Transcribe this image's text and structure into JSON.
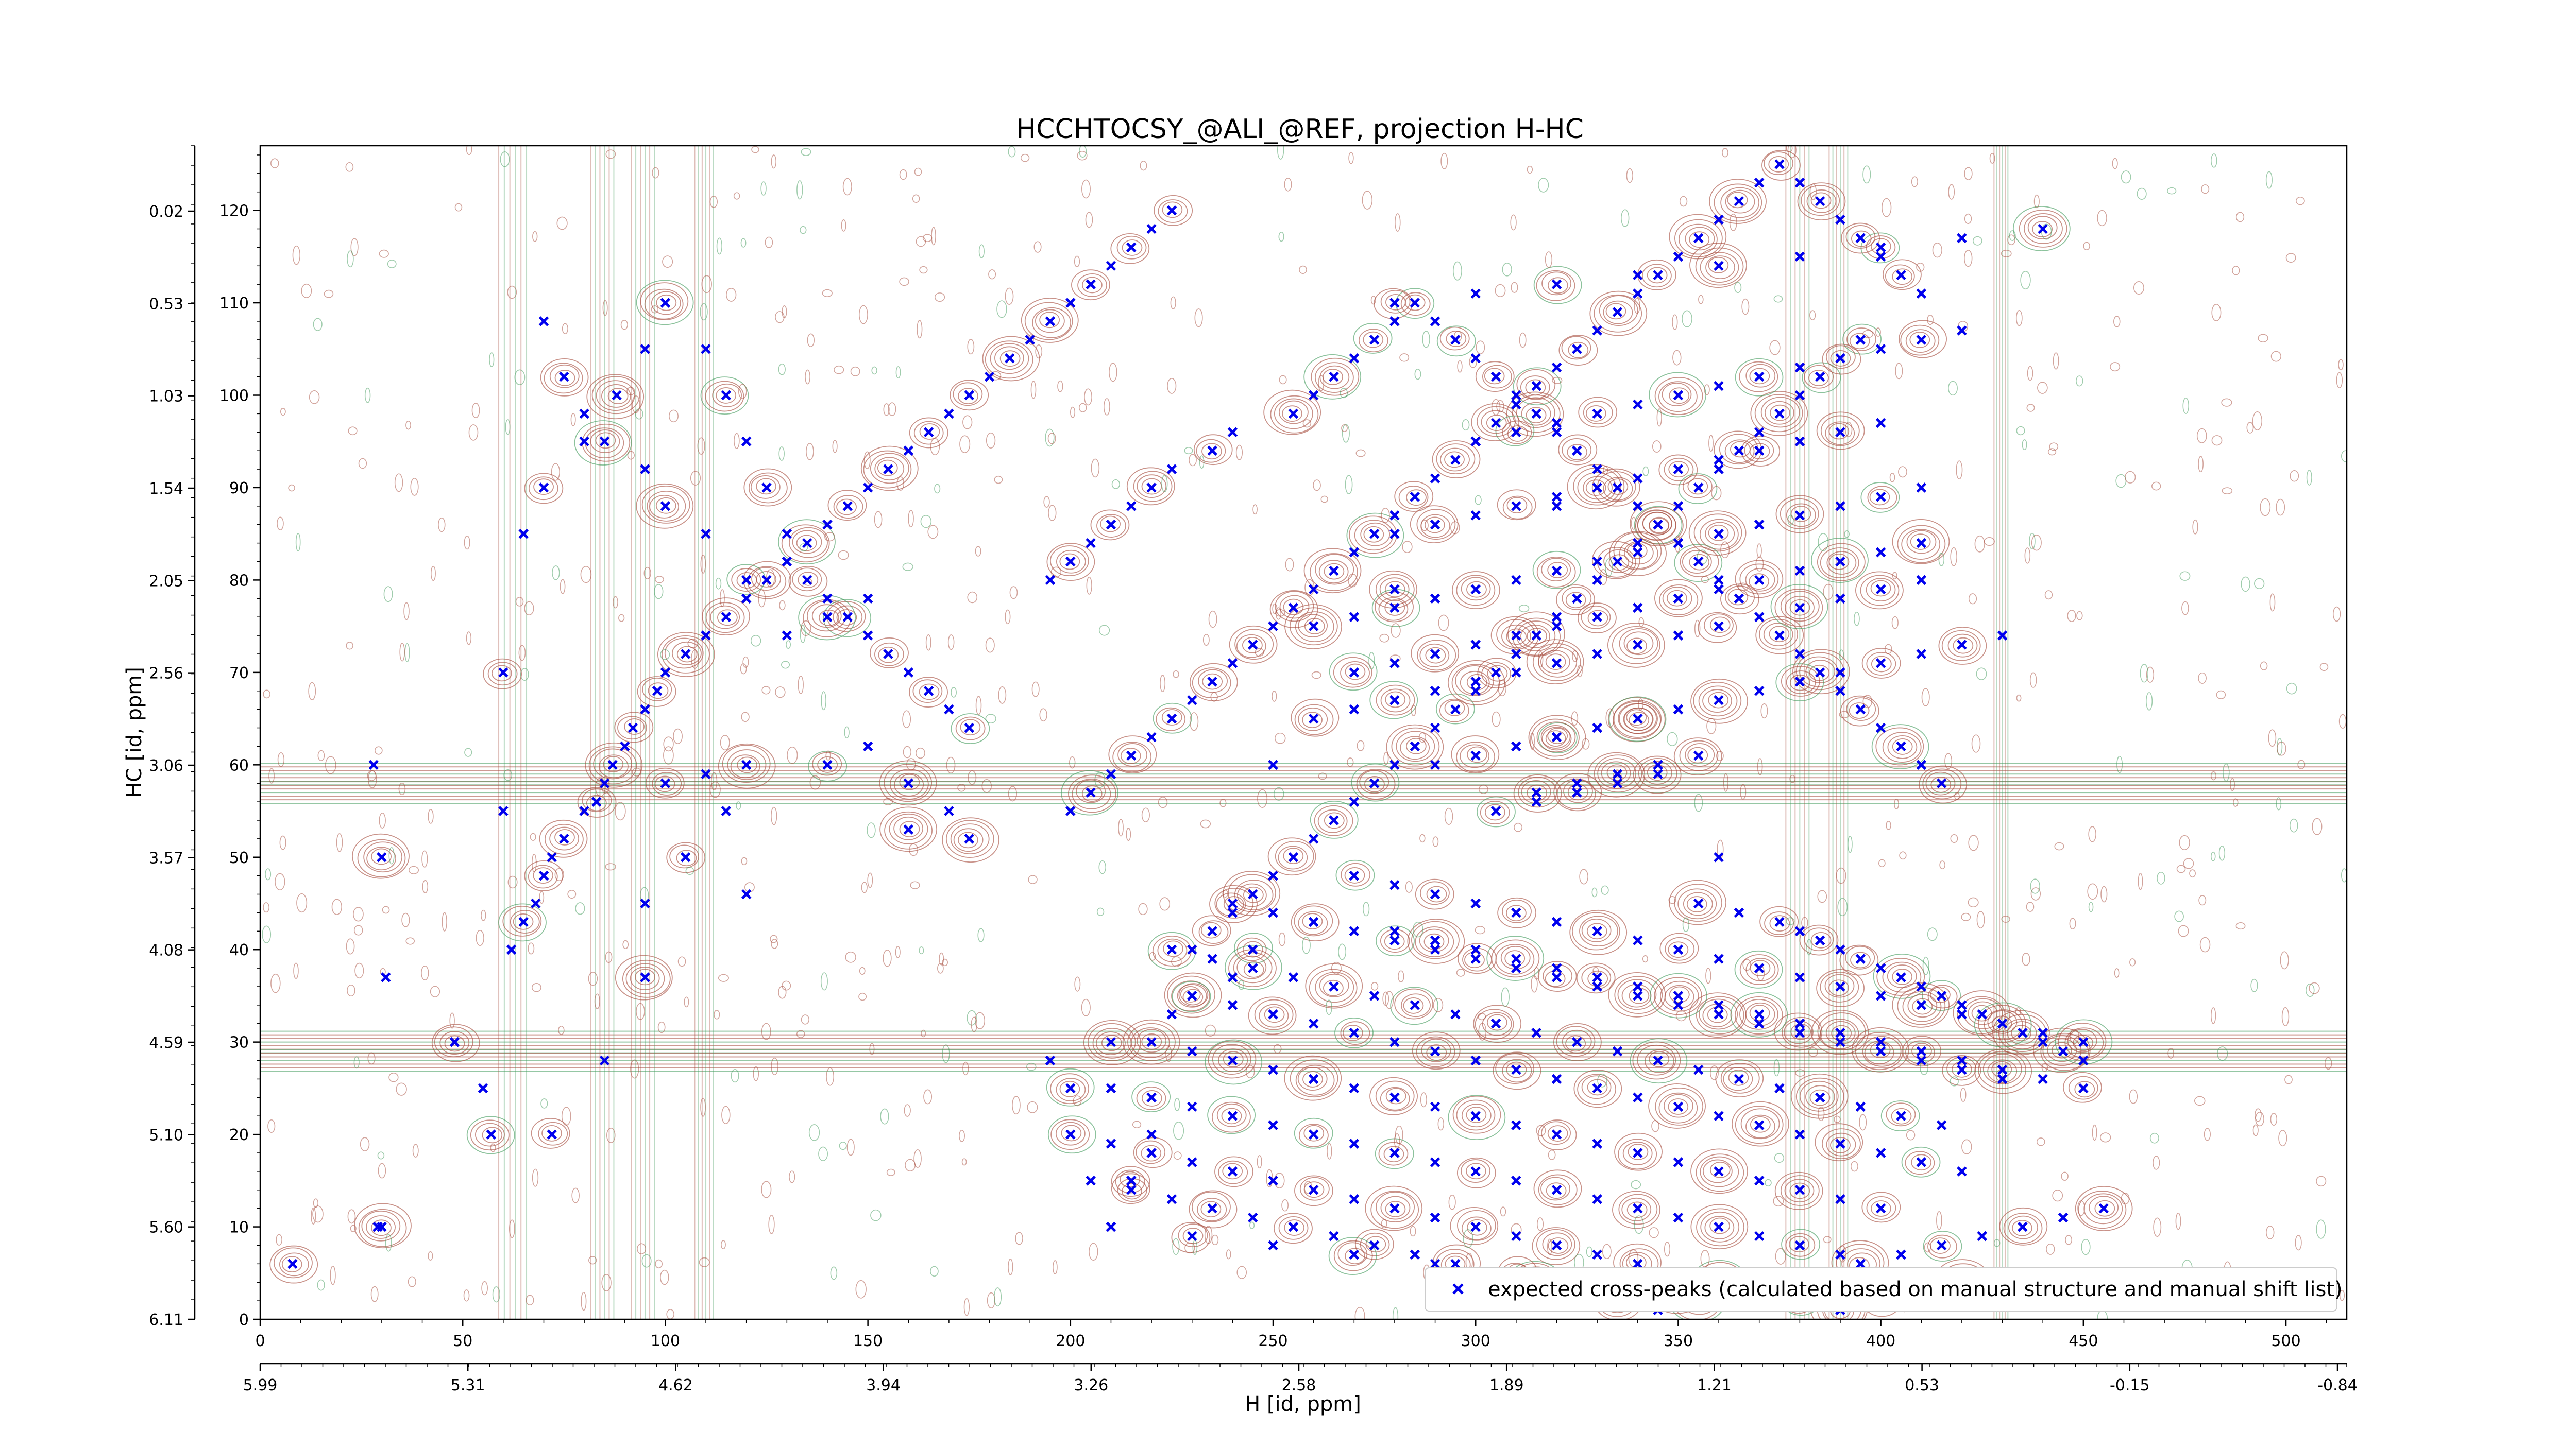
{
  "chart_data": {
    "type": "scatter",
    "title": "HCCHTOCSY_@ALI_@REF, projection H-HC",
    "xlabel": "H [id, ppm]",
    "ylabel": "HC [id, ppm]",
    "xlim": [
      0,
      515
    ],
    "ylim": [
      0,
      127
    ],
    "grid": false,
    "legend": {
      "position": "bottom-right",
      "entries": [
        "expected cross-peaks (calculated based on manual structure and manual shift list)"
      ]
    },
    "x_ticks_index": [
      "0",
      "50",
      "100",
      "150",
      "200",
      "250",
      "300",
      "350",
      "400",
      "450",
      "500"
    ],
    "x_ticks_ppm": [
      "5.99",
      "5.31",
      "4.62",
      "3.94",
      "3.26",
      "2.58",
      "1.89",
      "1.21",
      "0.53",
      "-0.15",
      "-0.84"
    ],
    "y_ticks_index": [
      "0",
      "10",
      "20",
      "30",
      "40",
      "50",
      "60",
      "70",
      "80",
      "90",
      "100",
      "110",
      "120"
    ],
    "y_ticks_ppm": [
      "6.11",
      "5.60",
      "5.10",
      "4.59",
      "4.08",
      "3.57",
      "3.06",
      "2.56",
      "2.05",
      "1.54",
      "1.03",
      "0.53",
      "0.02"
    ],
    "series": [
      {
        "name": "expected cross-peaks (calculated based on manual structure and manual shift list)",
        "color": "#0000ee",
        "marker": "x",
        "x": [
          8,
          29,
          30,
          31,
          30,
          28,
          48,
          55,
          57,
          62,
          65,
          68,
          70,
          72,
          75,
          80,
          83,
          85,
          87,
          90,
          92,
          95,
          98,
          100,
          105,
          110,
          115,
          120,
          125,
          130,
          135,
          140,
          145,
          150,
          155,
          160,
          165,
          170,
          175,
          180,
          185,
          190,
          195,
          200,
          205,
          210,
          215,
          220,
          225,
          230,
          235,
          240,
          245,
          250,
          255,
          260,
          265,
          270,
          275,
          280,
          285,
          290,
          295,
          300,
          305,
          310,
          315,
          320,
          325,
          330,
          335,
          340,
          345,
          350,
          355,
          360,
          365,
          370,
          375,
          380,
          385,
          390,
          395,
          320,
          280,
          250,
          160,
          120,
          95,
          85,
          72,
          60,
          60,
          65,
          70,
          80,
          88,
          95,
          100,
          110,
          115,
          120,
          125,
          130,
          135,
          140,
          145,
          150,
          155,
          160,
          165,
          170,
          175,
          150,
          140,
          130,
          120,
          110,
          100,
          95,
          85,
          80,
          75,
          70,
          100,
          110,
          120,
          115,
          105,
          95,
          140,
          150,
          160,
          170,
          175,
          210,
          215,
          220,
          200,
          195,
          210,
          225,
          230,
          240,
          245,
          195,
          200,
          205,
          210,
          215,
          220,
          225,
          235,
          240,
          255,
          260,
          265,
          270,
          275,
          280,
          285,
          290,
          295,
          300,
          305,
          310,
          315,
          320,
          325,
          330,
          335,
          340,
          345,
          350,
          355,
          360,
          365,
          370,
          375,
          380,
          385,
          390,
          395,
          400,
          405,
          410,
          415,
          280,
          290,
          300,
          310,
          320,
          330,
          340,
          350,
          360,
          370,
          380,
          390,
          400,
          260,
          270,
          280,
          290,
          300,
          310,
          320,
          330,
          340,
          350,
          360,
          370,
          380,
          390,
          400,
          410,
          270,
          280,
          290,
          300,
          310,
          320,
          330,
          340,
          350,
          360,
          370,
          380,
          390,
          400,
          410,
          300,
          310,
          320,
          330,
          340,
          350,
          360,
          370,
          380,
          390,
          400,
          410,
          420,
          260,
          270,
          280,
          290,
          300,
          310,
          320,
          330,
          340,
          350,
          360,
          370,
          380,
          390,
          400,
          410,
          280,
          300,
          320,
          340,
          360,
          380,
          400,
          420,
          440,
          290,
          300,
          310,
          320,
          330,
          340,
          350,
          360,
          370,
          380,
          390,
          400,
          410,
          420,
          430,
          305,
          315,
          325,
          335,
          345,
          310,
          320,
          330,
          340,
          350,
          315,
          325,
          335,
          345,
          355,
          360,
          355,
          365,
          375,
          380,
          385,
          390,
          395,
          400,
          405,
          410,
          415,
          420,
          425,
          430,
          435,
          440,
          445,
          450,
          240,
          250,
          260,
          270,
          280,
          290,
          300,
          310,
          320,
          330,
          340,
          350,
          360,
          370,
          380,
          390,
          400,
          410,
          420,
          430,
          225,
          235,
          245,
          255,
          265,
          275,
          285,
          295,
          305,
          315,
          325,
          335,
          345,
          355,
          365,
          375,
          385,
          395,
          405,
          415,
          230,
          240,
          250,
          260,
          270,
          280,
          290,
          300,
          310,
          320,
          330,
          340,
          350,
          360,
          370,
          380,
          390,
          400,
          410,
          420,
          220,
          230,
          240,
          250,
          260,
          270,
          280,
          290,
          300,
          310,
          320,
          330,
          340,
          350,
          360,
          370,
          380,
          390,
          400,
          210,
          220,
          230,
          240,
          250,
          260,
          270,
          280,
          290,
          300,
          310,
          320,
          330,
          340,
          350,
          360,
          370,
          380,
          390,
          200,
          210,
          220,
          230,
          240,
          250,
          260,
          270,
          280,
          290,
          300,
          310,
          320,
          330,
          340,
          350,
          360,
          370,
          380,
          390,
          400,
          410,
          420,
          205,
          215,
          225,
          235,
          245,
          255,
          265,
          275,
          285,
          295,
          305,
          315,
          325,
          335,
          345,
          355,
          365,
          375,
          385,
          395,
          405,
          415,
          425,
          435,
          445,
          455,
          210,
          230,
          250,
          270,
          290,
          310,
          330,
          350,
          370,
          390,
          410,
          430,
          450,
          270,
          280,
          290,
          300,
          310,
          320,
          330,
          340,
          350,
          360,
          370,
          380,
          390,
          400,
          410,
          420,
          430,
          440,
          450,
          280,
          290,
          300,
          310,
          320,
          330,
          340,
          350,
          360,
          370,
          380,
          390,
          400,
          410,
          420,
          430,
          440,
          450,
          200,
          205,
          210,
          215,
          220,
          225,
          230,
          235,
          240,
          245,
          250,
          255,
          260,
          265,
          270,
          275,
          280,
          285,
          290,
          295,
          300,
          305,
          310,
          315,
          320,
          325,
          330,
          335,
          340,
          345,
          350,
          355,
          360,
          365,
          370,
          375,
          380,
          385,
          390,
          395,
          400,
          405,
          410
        ],
        "y": [
          6,
          10,
          10,
          37,
          50,
          60,
          30,
          25,
          20,
          40,
          43,
          45,
          48,
          50,
          52,
          55,
          56,
          58,
          60,
          62,
          64,
          66,
          68,
          70,
          72,
          74,
          76,
          78,
          80,
          82,
          84,
          86,
          88,
          90,
          92,
          94,
          96,
          98,
          100,
          102,
          104,
          106,
          108,
          110,
          112,
          114,
          116,
          118,
          120,
          40,
          42,
          44,
          46,
          48,
          50,
          52,
          54,
          56,
          58,
          60,
          62,
          64,
          66,
          68,
          70,
          72,
          74,
          76,
          78,
          80,
          82,
          84,
          86,
          88,
          90,
          92,
          94,
          96,
          98,
          100,
          102,
          104,
          106,
          88,
          79,
          60,
          53,
          46,
          37,
          28,
          20,
          55,
          70,
          85,
          90,
          95,
          100,
          105,
          110,
          105,
          100,
          95,
          90,
          85,
          80,
          78,
          76,
          74,
          72,
          70,
          68,
          66,
          64,
          78,
          76,
          74,
          80,
          85,
          88,
          92,
          95,
          98,
          102,
          108,
          58,
          59,
          60,
          55,
          50,
          45,
          60,
          62,
          58,
          55,
          52,
          10,
          15,
          20,
          25,
          28,
          30,
          33,
          35,
          37,
          40,
          80,
          82,
          84,
          86,
          88,
          90,
          92,
          94,
          96,
          98,
          100,
          102,
          104,
          106,
          108,
          110,
          108,
          106,
          104,
          102,
          100,
          98,
          96,
          94,
          92,
          90,
          88,
          86,
          84,
          82,
          80,
          78,
          76,
          74,
          72,
          70,
          68,
          66,
          64,
          62,
          60,
          58,
          85,
          86,
          87,
          88,
          89,
          90,
          91,
          92,
          93,
          94,
          95,
          96,
          97,
          75,
          76,
          77,
          78,
          79,
          80,
          81,
          82,
          83,
          84,
          85,
          86,
          87,
          88,
          89,
          90,
          70,
          71,
          72,
          73,
          74,
          75,
          76,
          77,
          78,
          79,
          80,
          81,
          82,
          83,
          84,
          95,
          96,
          97,
          98,
          99,
          100,
          101,
          102,
          103,
          104,
          105,
          106,
          107,
          65,
          66,
          67,
          68,
          69,
          70,
          71,
          72,
          73,
          74,
          75,
          76,
          77,
          78,
          79,
          80,
          110,
          111,
          112,
          113,
          114,
          115,
          116,
          117,
          118,
          60,
          61,
          62,
          63,
          64,
          65,
          66,
          67,
          68,
          69,
          70,
          71,
          72,
          73,
          74,
          55,
          56,
          57,
          58,
          59,
          62,
          63,
          64,
          65,
          66,
          57,
          58,
          59,
          60,
          61,
          50,
          45,
          44,
          43,
          42,
          41,
          40,
          39,
          38,
          37,
          36,
          35,
          34,
          33,
          32,
          31,
          30,
          29,
          28,
          45,
          44,
          43,
          42,
          41,
          40,
          39,
          38,
          37,
          36,
          35,
          34,
          33,
          32,
          31,
          30,
          29,
          28,
          27,
          26,
          40,
          39,
          38,
          37,
          36,
          35,
          34,
          33,
          32,
          31,
          30,
          29,
          28,
          27,
          26,
          25,
          24,
          23,
          22,
          21,
          35,
          34,
          33,
          32,
          31,
          30,
          29,
          28,
          27,
          26,
          25,
          24,
          23,
          22,
          21,
          20,
          19,
          18,
          17,
          16,
          30,
          29,
          28,
          27,
          26,
          25,
          24,
          23,
          22,
          21,
          20,
          19,
          18,
          17,
          16,
          15,
          14,
          13,
          12,
          25,
          24,
          23,
          22,
          21,
          20,
          19,
          18,
          17,
          16,
          15,
          14,
          13,
          12,
          11,
          10,
          9,
          8,
          7,
          20,
          19,
          18,
          17,
          16,
          15,
          14,
          13,
          12,
          11,
          10,
          9,
          8,
          7,
          6,
          5,
          4,
          3,
          2,
          1,
          2,
          3,
          4,
          15,
          14,
          13,
          12,
          11,
          10,
          9,
          8,
          7,
          6,
          5,
          4,
          3,
          2,
          1,
          2,
          3,
          4,
          5,
          6,
          7,
          8,
          9,
          10,
          11,
          12,
          10,
          9,
          8,
          7,
          6,
          5,
          4,
          3,
          2,
          1,
          2,
          3,
          4,
          48,
          47,
          46,
          45,
          44,
          43,
          42,
          41,
          40,
          39,
          38,
          37,
          36,
          35,
          34,
          33,
          32,
          31,
          30,
          42,
          41,
          40,
          39,
          38,
          37,
          36,
          35,
          34,
          33,
          32,
          31,
          30,
          29,
          28,
          27,
          26,
          25,
          55,
          57,
          59,
          61,
          63,
          65,
          67,
          69,
          71,
          73,
          75,
          77,
          79,
          81,
          83,
          85,
          87,
          89,
          91,
          93,
          95,
          97,
          99,
          101,
          103,
          105,
          107,
          109,
          111,
          113,
          115,
          117,
          119,
          121,
          123,
          125,
          123,
          121,
          119,
          117,
          115,
          113,
          111
        ]
      }
    ]
  }
}
